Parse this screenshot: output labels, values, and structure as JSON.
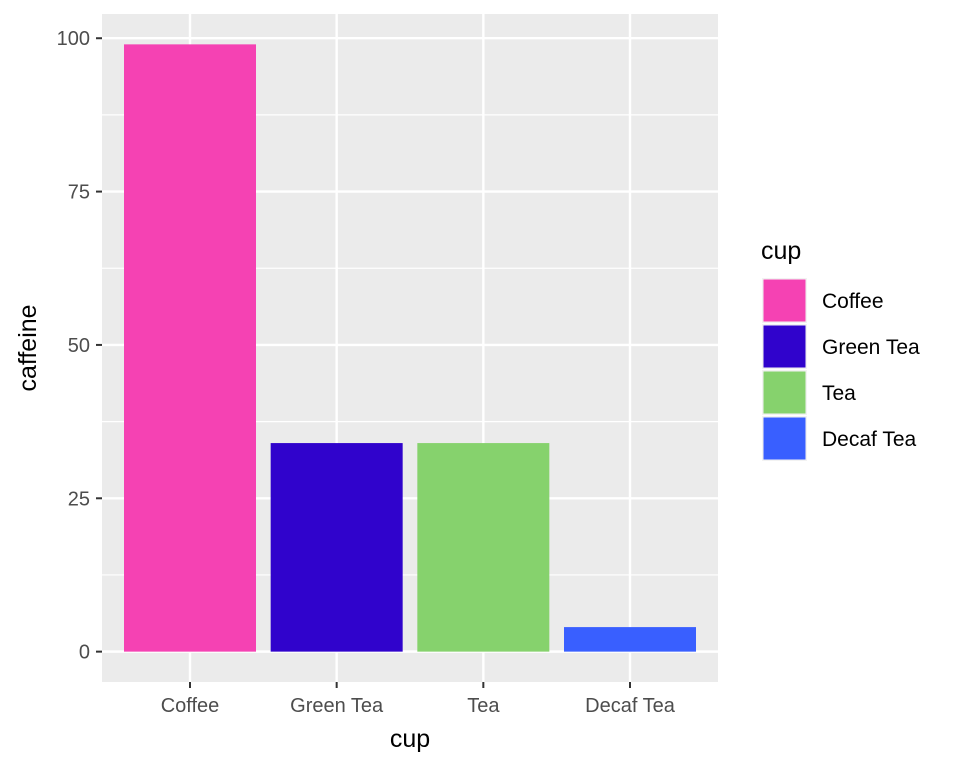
{
  "chart_data": {
    "type": "bar",
    "categories": [
      "Coffee",
      "Green Tea",
      "Tea",
      "Decaf Tea"
    ],
    "values": [
      99,
      34,
      34,
      4
    ],
    "colors": [
      "#f542b3",
      "#3003cc",
      "#86d26d",
      "#395fff"
    ],
    "xlabel": "cup",
    "ylabel": "caffeine",
    "ylim": [
      -4.95,
      103.95
    ],
    "yticks": [
      0,
      25,
      50,
      75,
      100
    ],
    "grid": true,
    "panel_background": "#ebebeb",
    "grid_color": "#ffffff",
    "legend": {
      "title": "cup",
      "position": "right",
      "entries": [
        "Coffee",
        "Green Tea",
        "Tea",
        "Decaf Tea"
      ]
    }
  }
}
